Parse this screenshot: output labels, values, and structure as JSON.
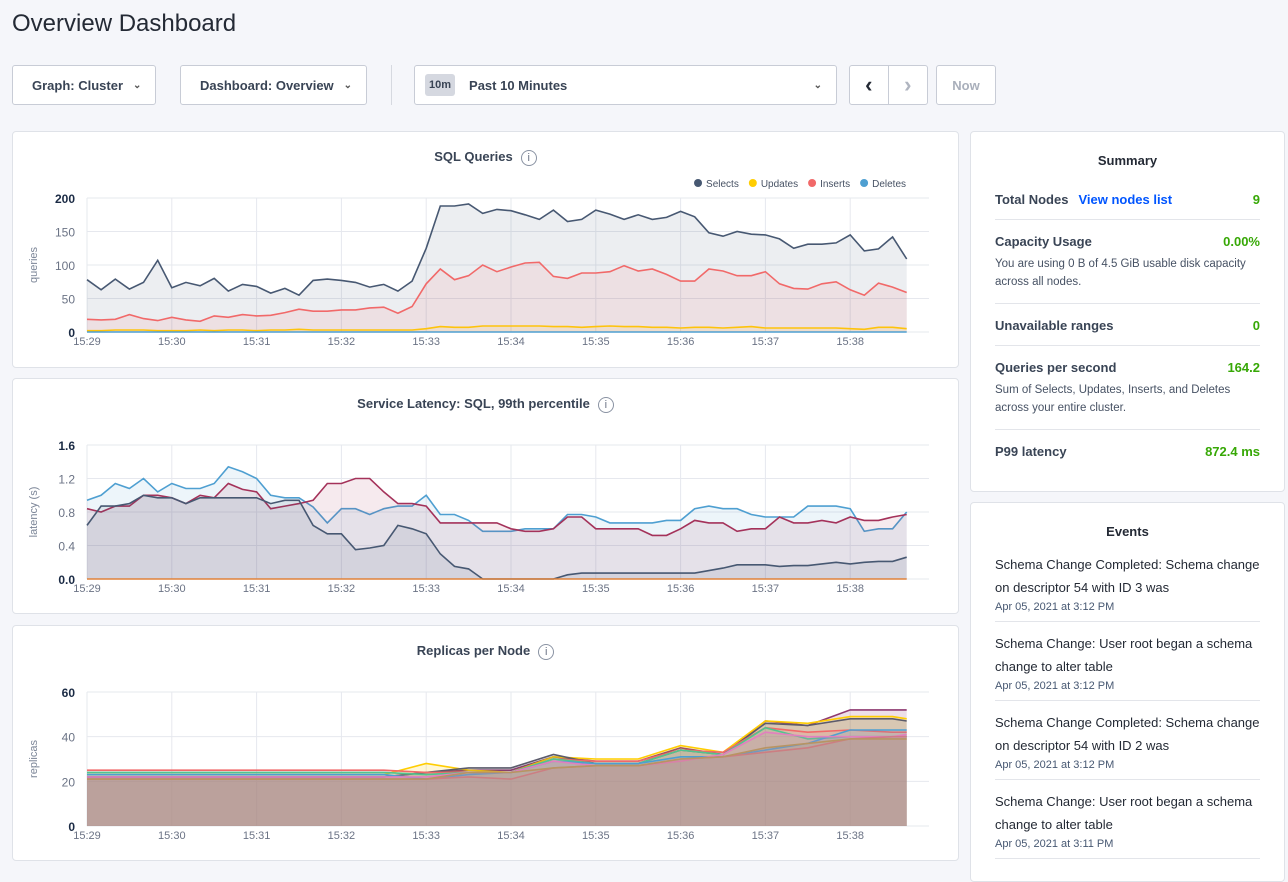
{
  "page_title": "Overview Dashboard",
  "toolbar": {
    "graph": "Graph: Cluster",
    "dashboard": "Dashboard: Overview",
    "time_badge": "10m",
    "time_range": "Past 10 Minutes",
    "prev": "‹",
    "next": "›",
    "now": "Now"
  },
  "charts": [
    {
      "title": "SQL Queries",
      "info": "i",
      "ylabel": "queries",
      "ylim": [
        0,
        200
      ],
      "y_ticks": [
        "0",
        "50",
        "100",
        "150",
        "200"
      ],
      "x_ticks": [
        "15:29",
        "15:30",
        "15:31",
        "15:32",
        "15:33",
        "15:34",
        "15:35",
        "15:36",
        "15:37",
        "15:38"
      ],
      "legend": true,
      "x": [
        "15:29:00",
        "15:29:10",
        "15:29:20",
        "15:29:30",
        "15:29:40",
        "15:29:50",
        "15:30:00",
        "15:30:10",
        "15:30:20",
        "15:30:30",
        "15:30:40",
        "15:30:50",
        "15:31:00",
        "15:31:10",
        "15:31:20",
        "15:31:30",
        "15:31:40",
        "15:31:50",
        "15:32:00",
        "15:32:10",
        "15:32:20",
        "15:32:30",
        "15:32:40",
        "15:32:50",
        "15:33:00",
        "15:33:10",
        "15:33:20",
        "15:33:30",
        "15:33:40",
        "15:33:50",
        "15:34:00",
        "15:34:10",
        "15:34:20",
        "15:34:30",
        "15:34:40",
        "15:34:50",
        "15:35:00",
        "15:35:10",
        "15:35:20",
        "15:35:30",
        "15:35:40",
        "15:35:50",
        "15:36:00",
        "15:36:10",
        "15:36:20",
        "15:36:30",
        "15:36:40",
        "15:36:50",
        "15:37:00",
        "15:37:10",
        "15:37:20",
        "15:37:30",
        "15:37:40",
        "15:37:50",
        "15:38:00",
        "15:38:10",
        "15:38:20",
        "15:38:30",
        "15:38:40"
      ],
      "series": [
        {
          "name": "Selects",
          "color": "#475872",
          "values": [
            78,
            63,
            79,
            64,
            74,
            107,
            66,
            74,
            69,
            80,
            61,
            71,
            68,
            58,
            65,
            55,
            77,
            79,
            77,
            74,
            67,
            71,
            61,
            76,
            125,
            188,
            188,
            191,
            177,
            183,
            181,
            175,
            168,
            182,
            165,
            168,
            182,
            176,
            168,
            175,
            168,
            171,
            180,
            172,
            148,
            143,
            150,
            146,
            145,
            139,
            125,
            131,
            131,
            133,
            145,
            121,
            124,
            142,
            109
          ]
        },
        {
          "name": "Updates",
          "color": "#ffcd02",
          "values": [
            2,
            2,
            3,
            3,
            3,
            2,
            2,
            2,
            3,
            2,
            3,
            3,
            2,
            3,
            3,
            4,
            3,
            3,
            3,
            3,
            3,
            3,
            3,
            3,
            5,
            8,
            7,
            7,
            9,
            9,
            9,
            9,
            9,
            8,
            8,
            7,
            8,
            9,
            8,
            8,
            7,
            7,
            6,
            7,
            7,
            6,
            7,
            8,
            6,
            6,
            6,
            6,
            6,
            6,
            5,
            4,
            7,
            7,
            5
          ]
        },
        {
          "name": "Inserts",
          "color": "#f16969",
          "values": [
            19,
            18,
            19,
            26,
            20,
            17,
            22,
            18,
            16,
            24,
            22,
            26,
            24,
            25,
            29,
            34,
            31,
            31,
            33,
            33,
            36,
            37,
            28,
            38,
            72,
            94,
            78,
            84,
            100,
            90,
            97,
            103,
            104,
            83,
            80,
            88,
            88,
            90,
            99,
            91,
            94,
            86,
            76,
            76,
            94,
            91,
            84,
            84,
            90,
            72,
            65,
            64,
            72,
            75,
            63,
            55,
            73,
            67,
            59
          ]
        },
        {
          "name": "Deletes",
          "color": "#4e9fd1",
          "values": [
            0,
            0,
            0,
            0,
            0,
            0,
            0,
            0,
            0,
            0,
            0,
            0,
            0,
            0,
            0,
            0,
            0,
            0,
            0,
            0,
            0,
            0,
            0,
            0,
            0,
            0,
            0,
            0,
            0,
            0,
            0,
            0,
            0,
            0,
            0,
            0,
            0,
            0,
            0,
            0,
            0,
            0,
            0,
            0,
            0,
            0,
            0,
            0,
            0,
            0,
            0,
            0,
            0,
            0,
            0,
            0,
            0,
            0,
            0
          ]
        }
      ]
    },
    {
      "title": "Service Latency: SQL, 99th percentile",
      "info": "i",
      "ylabel": "latency (s)",
      "ylim": [
        0,
        1.6
      ],
      "y_ticks": [
        "0.0",
        "0.4",
        "0.8",
        "1.2",
        "1.6"
      ],
      "x_ticks": [
        "15:29",
        "15:30",
        "15:31",
        "15:32",
        "15:33",
        "15:34",
        "15:35",
        "15:36",
        "15:37",
        "15:38"
      ],
      "legend": false,
      "x": [
        "15:29:00",
        "15:29:10",
        "15:29:20",
        "15:29:30",
        "15:29:40",
        "15:29:50",
        "15:30:00",
        "15:30:10",
        "15:30:20",
        "15:30:30",
        "15:30:40",
        "15:30:50",
        "15:31:00",
        "15:31:10",
        "15:31:20",
        "15:31:30",
        "15:31:40",
        "15:31:50",
        "15:32:00",
        "15:32:10",
        "15:32:20",
        "15:32:30",
        "15:32:40",
        "15:32:50",
        "15:33:00",
        "15:33:10",
        "15:33:20",
        "15:33:30",
        "15:33:40",
        "15:33:50",
        "15:34:00",
        "15:34:10",
        "15:34:20",
        "15:34:30",
        "15:34:40",
        "15:34:50",
        "15:35:00",
        "15:35:10",
        "15:35:20",
        "15:35:30",
        "15:35:40",
        "15:35:50",
        "15:36:00",
        "15:36:10",
        "15:36:20",
        "15:36:30",
        "15:36:40",
        "15:36:50",
        "15:37:00",
        "15:37:10",
        "15:37:20",
        "15:37:30",
        "15:37:40",
        "15:37:50",
        "15:38:00",
        "15:38:10",
        "15:38:20",
        "15:38:30",
        "15:38:40"
      ],
      "series": [
        {
          "color": "#4e9fd1",
          "values": [
            0.94,
            1.0,
            1.14,
            1.08,
            1.2,
            1.04,
            1.14,
            1.08,
            1.08,
            1.14,
            1.34,
            1.28,
            1.2,
            1.0,
            0.97,
            0.97,
            0.86,
            0.67,
            0.84,
            0.84,
            0.77,
            0.84,
            0.87,
            0.87,
            1.0,
            0.77,
            0.77,
            0.7,
            0.57,
            0.57,
            0.57,
            0.6,
            0.6,
            0.6,
            0.77,
            0.77,
            0.74,
            0.67,
            0.67,
            0.67,
            0.67,
            0.7,
            0.7,
            0.84,
            0.87,
            0.84,
            0.84,
            0.77,
            0.74,
            0.74,
            0.74,
            0.87,
            0.87,
            0.87,
            0.84,
            0.57,
            0.6,
            0.6,
            0.8
          ]
        },
        {
          "color": "#a4325a",
          "values": [
            0.84,
            0.8,
            0.87,
            0.87,
            1.0,
            1.0,
            0.97,
            0.9,
            1.0,
            0.97,
            1.14,
            1.07,
            1.04,
            0.84,
            0.87,
            0.9,
            0.94,
            1.14,
            1.14,
            1.2,
            1.2,
            1.04,
            0.9,
            0.9,
            0.87,
            0.67,
            0.67,
            0.67,
            0.67,
            0.67,
            0.6,
            0.57,
            0.57,
            0.6,
            0.74,
            0.74,
            0.6,
            0.6,
            0.6,
            0.6,
            0.52,
            0.52,
            0.6,
            0.7,
            0.67,
            0.67,
            0.57,
            0.6,
            0.6,
            0.74,
            0.67,
            0.67,
            0.7,
            0.67,
            0.74,
            0.7,
            0.7,
            0.74,
            0.77
          ]
        },
        {
          "color": "#475872",
          "values": [
            0.64,
            0.87,
            0.87,
            0.9,
            1.0,
            0.97,
            0.97,
            0.9,
            0.97,
            0.97,
            0.97,
            0.97,
            0.97,
            0.9,
            0.94,
            0.94,
            0.64,
            0.54,
            0.54,
            0.35,
            0.37,
            0.4,
            0.64,
            0.6,
            0.54,
            0.3,
            0.15,
            0.12,
            0,
            0,
            0,
            0,
            0,
            0,
            0.05,
            0.07,
            0.07,
            0.07,
            0.07,
            0.07,
            0.07,
            0.07,
            0.07,
            0.07,
            0.1,
            0.13,
            0.17,
            0.17,
            0.17,
            0.15,
            0.16,
            0.16,
            0.18,
            0.2,
            0.18,
            0.2,
            0.21,
            0.21,
            0.26
          ]
        },
        {
          "color": "#e0823a",
          "values": [
            0,
            0,
            0,
            0,
            0,
            0,
            0,
            0,
            0,
            0,
            0,
            0,
            0,
            0,
            0,
            0,
            0,
            0,
            0,
            0,
            0,
            0,
            0,
            0,
            0,
            0,
            0,
            0,
            0,
            0,
            0,
            0,
            0,
            0,
            0,
            0,
            0,
            0,
            0,
            0,
            0,
            0,
            0,
            0,
            0,
            0,
            0,
            0,
            0,
            0,
            0,
            0,
            0,
            0,
            0,
            0,
            0,
            0,
            0
          ]
        }
      ]
    },
    {
      "title": "Replicas per Node",
      "info": "i",
      "ylabel": "replicas",
      "ylim": [
        0,
        60
      ],
      "y_ticks": [
        "0",
        "20",
        "40",
        "60"
      ],
      "x_ticks": [
        "15:29",
        "15:30",
        "15:31",
        "15:32",
        "15:33",
        "15:34",
        "15:35",
        "15:36",
        "15:37",
        "15:38"
      ],
      "legend": false,
      "x": [
        "15:29:00",
        "15:29:30",
        "15:30:00",
        "15:30:30",
        "15:31:00",
        "15:31:30",
        "15:32:00",
        "15:32:30",
        "15:33:00",
        "15:33:30",
        "15:34:00",
        "15:34:30",
        "15:35:00",
        "15:35:30",
        "15:36:00",
        "15:36:30",
        "15:37:00",
        "15:37:30",
        "15:38:00",
        "15:38:30",
        "15:38:40"
      ],
      "series": [
        {
          "color": "#8f3a70",
          "values": [
            22,
            22,
            22,
            22,
            22,
            22,
            22,
            22,
            24,
            25,
            25,
            31,
            29,
            29,
            35,
            32,
            47,
            45,
            52,
            52,
            52
          ]
        },
        {
          "color": "#ffcd02",
          "values": [
            23,
            23,
            23,
            23,
            23,
            23,
            23,
            23,
            28,
            25,
            24,
            31,
            30,
            30,
            36,
            33,
            47,
            46,
            49,
            49,
            48
          ]
        },
        {
          "color": "#5b5b6b",
          "values": [
            22,
            22,
            22,
            22,
            22,
            22,
            22,
            22,
            24,
            26,
            26,
            32,
            28,
            28,
            34,
            32,
            46,
            45,
            48,
            48,
            47
          ]
        },
        {
          "color": "#f16969",
          "values": [
            25,
            25,
            25,
            25,
            25,
            25,
            25,
            25,
            24,
            24,
            24,
            30,
            29,
            29,
            34,
            33,
            44,
            42,
            43,
            42,
            42
          ]
        },
        {
          "color": "#52c48e",
          "values": [
            24,
            24,
            24,
            24,
            24,
            24,
            24,
            24,
            23,
            24,
            24,
            30,
            28,
            28,
            34,
            32,
            44,
            39,
            40,
            40,
            40
          ]
        },
        {
          "color": "#4e9fd1",
          "values": [
            23,
            23,
            23,
            23,
            23,
            23,
            23,
            23,
            21,
            23,
            24,
            29,
            28,
            28,
            31,
            31,
            34,
            37,
            43,
            43,
            43
          ]
        },
        {
          "color": "#e27fbf",
          "values": [
            22,
            22,
            22,
            22,
            22,
            22,
            22,
            22,
            22,
            24,
            24,
            29,
            27,
            27,
            29,
            32,
            42,
            40,
            40,
            40,
            41
          ]
        },
        {
          "color": "#d07a88",
          "values": [
            21,
            21,
            21,
            21,
            21,
            21,
            21,
            21,
            21,
            22,
            21,
            26,
            27,
            27,
            30,
            31,
            33,
            35,
            39,
            40,
            40
          ]
        },
        {
          "color": "#b89463",
          "values": [
            21,
            21,
            21,
            21,
            21,
            21,
            21,
            21,
            21,
            24,
            24,
            26,
            27,
            27,
            30,
            31,
            35,
            37,
            39,
            39,
            39
          ]
        }
      ]
    }
  ],
  "summary": {
    "title": "Summary",
    "total_nodes_label": "Total Nodes",
    "view_nodes": "View nodes list",
    "total_nodes": "9",
    "capacity_label": "Capacity Usage",
    "capacity_value": "0.00%",
    "capacity_desc": "You are using 0 B of 4.5 GiB usable disk capacity across all nodes.",
    "unavailable_label": "Unavailable ranges",
    "unavailable_value": "0",
    "qps_label": "Queries per second",
    "qps_value": "164.2",
    "qps_desc": "Sum of Selects, Updates, Inserts, and Deletes across your entire cluster.",
    "p99_label": "P99 latency",
    "p99_value": "872.4 ms"
  },
  "events": {
    "title": "Events",
    "items": [
      {
        "text": "Schema Change Completed: Schema change on descriptor 54 with ID 3 was",
        "date": "Apr 05, 2021 at 3:12 PM"
      },
      {
        "text": "Schema Change: User root began a schema change to alter table",
        "date": "Apr 05, 2021 at 3:12 PM"
      },
      {
        "text": "Schema Change Completed: Schema change on descriptor 54 with ID 2 was",
        "date": "Apr 05, 2021 at 3:12 PM"
      },
      {
        "text": "Schema Change: User root began a schema change to alter table",
        "date": "Apr 05, 2021 at 3:11 PM"
      }
    ]
  }
}
